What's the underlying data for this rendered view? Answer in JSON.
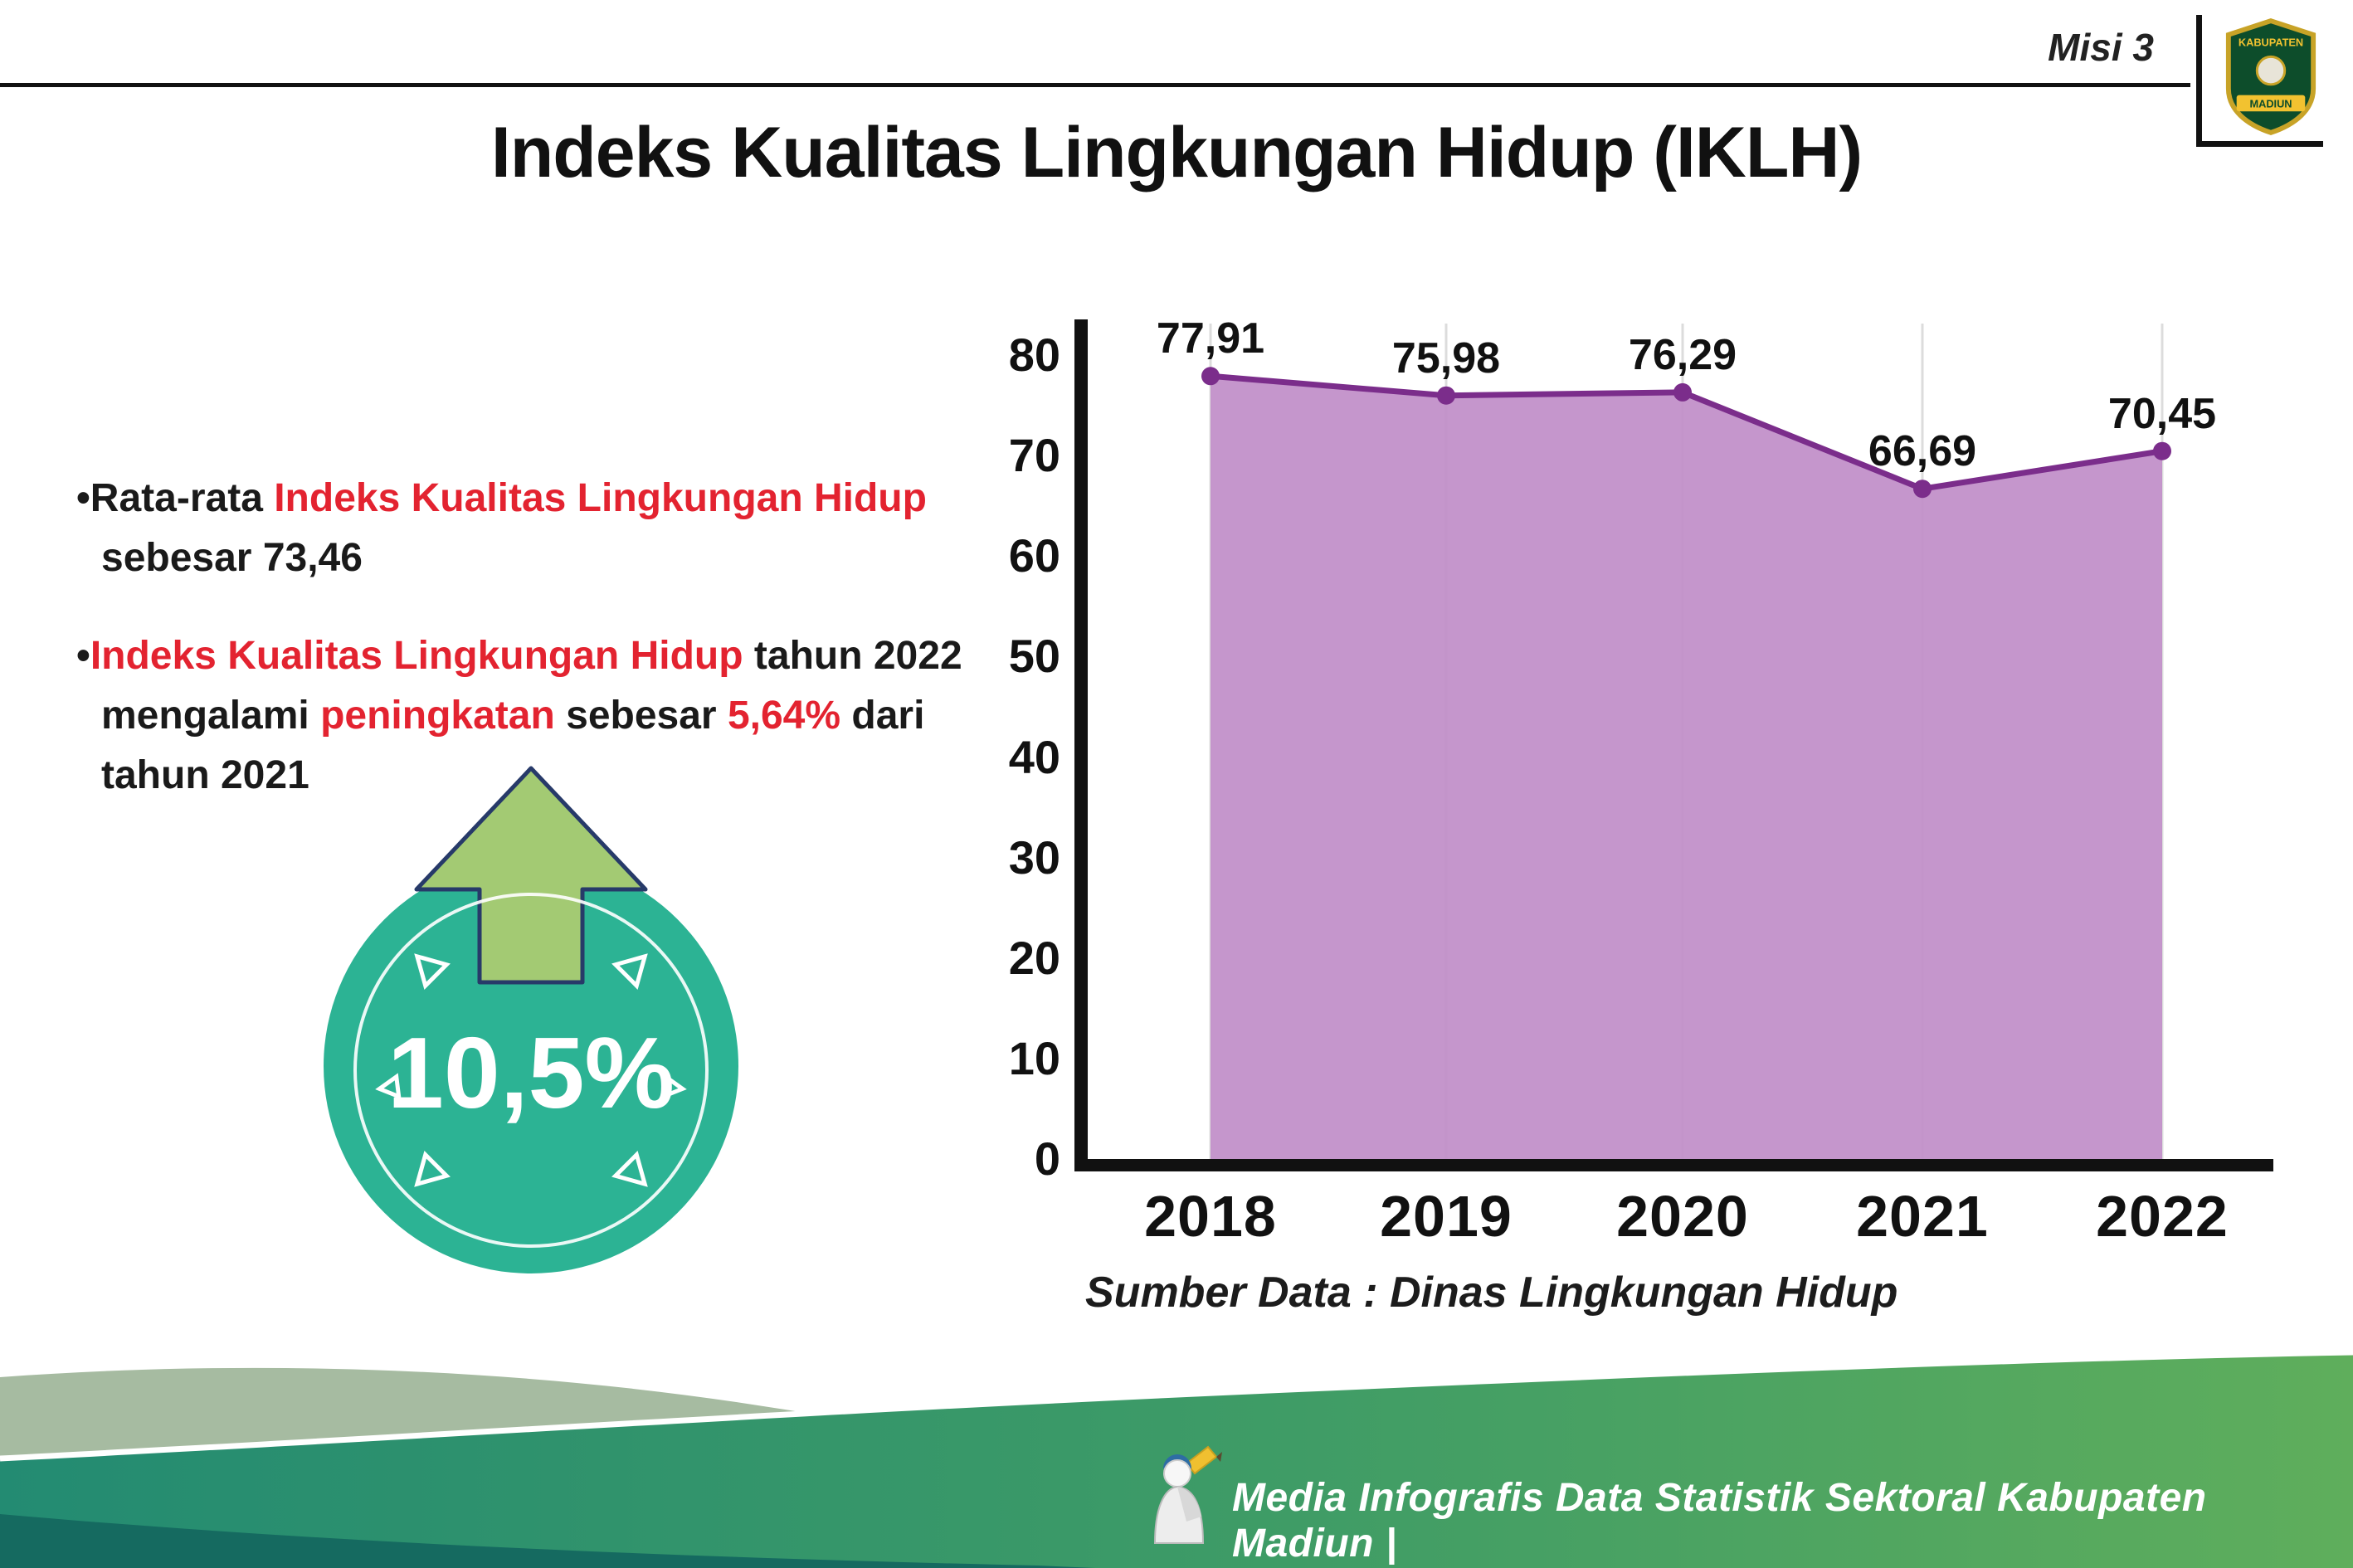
{
  "header": {
    "misi_label": "Misi 3",
    "title": "Indeks Kualitas Lingkungan Hidup (IKLH)"
  },
  "logo": {
    "top_text": "KABUPATEN",
    "bottom_text": "MADIUN"
  },
  "bullets": [
    {
      "segments": [
        {
          "text": "•Rata-rata ",
          "color": "dark"
        },
        {
          "text": "Indeks Kualitas Lingkungan Hidup",
          "color": "red"
        },
        {
          "text": " sebesar 73,46",
          "color": "dark"
        }
      ]
    },
    {
      "segments": [
        {
          "text": "•",
          "color": "dark"
        },
        {
          "text": "Indeks Kualitas Lingkungan Hidup",
          "color": "red"
        },
        {
          "text": " tahun 2022 mengalami ",
          "color": "dark"
        },
        {
          "text": "peningkatan",
          "color": "red"
        },
        {
          "text": " sebesar ",
          "color": "dark"
        },
        {
          "text": "5,64%",
          "color": "red"
        },
        {
          "text": " dari tahun 2021",
          "color": "dark"
        }
      ]
    }
  ],
  "badge": {
    "value": "10,5%",
    "circle_color": "#2cb394",
    "arrow_color": "#a3ca73",
    "arrow_outline": "#273a69"
  },
  "chart_data": {
    "type": "area",
    "categories": [
      "2018",
      "2019",
      "2020",
      "2021",
      "2022"
    ],
    "values": [
      77.91,
      75.98,
      76.29,
      66.69,
      70.45
    ],
    "labels": [
      "77,91",
      "75,98",
      "76,29",
      "66,69",
      "70,45"
    ],
    "yticks": [
      0,
      10,
      20,
      30,
      40,
      50,
      60,
      70,
      80
    ],
    "ylim": [
      0,
      80
    ],
    "grid": "vertical",
    "legend": "none",
    "fill_color": "#c08dc8",
    "line_color": "#7b2d8b",
    "source": "Sumber Data : Dinas Lingkungan Hidup"
  },
  "footer": {
    "text": "Media Infografis Data Statistik Sektoral Kabupaten Madiun |"
  },
  "colors": {
    "accent_red": "#e32330",
    "footer_teal": "#238b72",
    "footer_green": "#5fae5c",
    "footer_dark": "#156a60",
    "footer_sage": "#a6bba1"
  }
}
